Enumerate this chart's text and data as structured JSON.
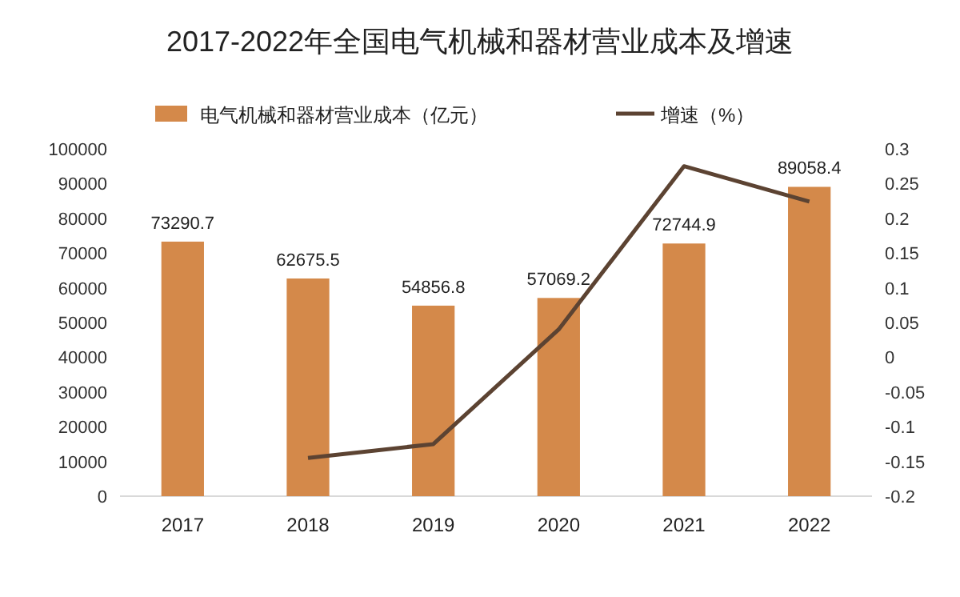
{
  "chart_data": {
    "type": "bar",
    "title": "2017-2022年全国电气机械和器材营业成本及增速",
    "categories": [
      "2017",
      "2018",
      "2019",
      "2020",
      "2021",
      "2022"
    ],
    "series": [
      {
        "name": "电气机械和器材营业成本（亿元）",
        "color": "#d4894a",
        "values": [
          73290.7,
          62675.5,
          54856.8,
          57069.2,
          72744.9,
          89058.4
        ],
        "value_labels": [
          "73290.7",
          "62675.5",
          "54856.8",
          "57069.2",
          "72744.9",
          "89058.4"
        ]
      },
      {
        "name": "增速（%）",
        "type": "line",
        "axis": "y2",
        "color": "#5c4332",
        "values": [
          null,
          -0.145,
          -0.125,
          0.04,
          0.275,
          0.224
        ]
      }
    ],
    "ylim": [
      0,
      100000
    ],
    "yticks": [
      0,
      10000,
      20000,
      30000,
      40000,
      50000,
      60000,
      70000,
      80000,
      90000,
      100000
    ],
    "y2lim": [
      -0.2,
      0.3
    ],
    "y2ticks": [
      {
        "value": -0.2,
        "label": "-0.2"
      },
      {
        "value": -0.15,
        "label": "-0.15"
      },
      {
        "value": -0.1,
        "label": "-0.1"
      },
      {
        "value": -0.05,
        "label": "-0.05"
      },
      0,
      0.05,
      0.1,
      0.15,
      0.2,
      0.25,
      0.3
    ],
    "grid": false,
    "legend": "top",
    "marker": "none",
    "line_style": "solid"
  }
}
